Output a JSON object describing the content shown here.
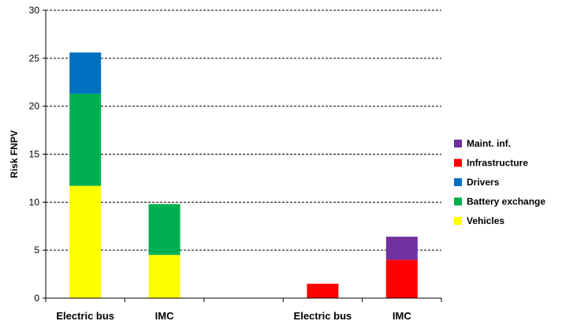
{
  "chart_data": {
    "type": "bar",
    "stacked": true,
    "categories": [
      "Electric bus",
      "IMC",
      "",
      "Electric bus",
      "IMC"
    ],
    "ylabel": "Risk FNPV",
    "ylim": [
      0,
      30
    ],
    "yticks": [
      0,
      5,
      10,
      15,
      20,
      25,
      30
    ],
    "grid": "horizontal-dashed",
    "legend_position": "right",
    "series": [
      {
        "name": "Vehicles",
        "color": "#ffff00",
        "values": [
          11.7,
          4.5,
          0,
          0,
          0
        ]
      },
      {
        "name": "Battery exchange",
        "color": "#00b050",
        "values": [
          9.6,
          5.3,
          0,
          0,
          0
        ]
      },
      {
        "name": "Drivers",
        "color": "#0070c0",
        "values": [
          4.3,
          0,
          0,
          0,
          0
        ]
      },
      {
        "name": "Infrastructure",
        "color": "#ff0000",
        "values": [
          0,
          0,
          0,
          1.5,
          4.0
        ]
      },
      {
        "name": "Maint. inf.",
        "color": "#7030a0",
        "values": [
          0,
          0,
          0,
          0,
          2.4
        ]
      }
    ],
    "legend_order": [
      "Maint. inf.",
      "Infrastructure",
      "Drivers",
      "Battery exchange",
      "Vehicles"
    ]
  }
}
